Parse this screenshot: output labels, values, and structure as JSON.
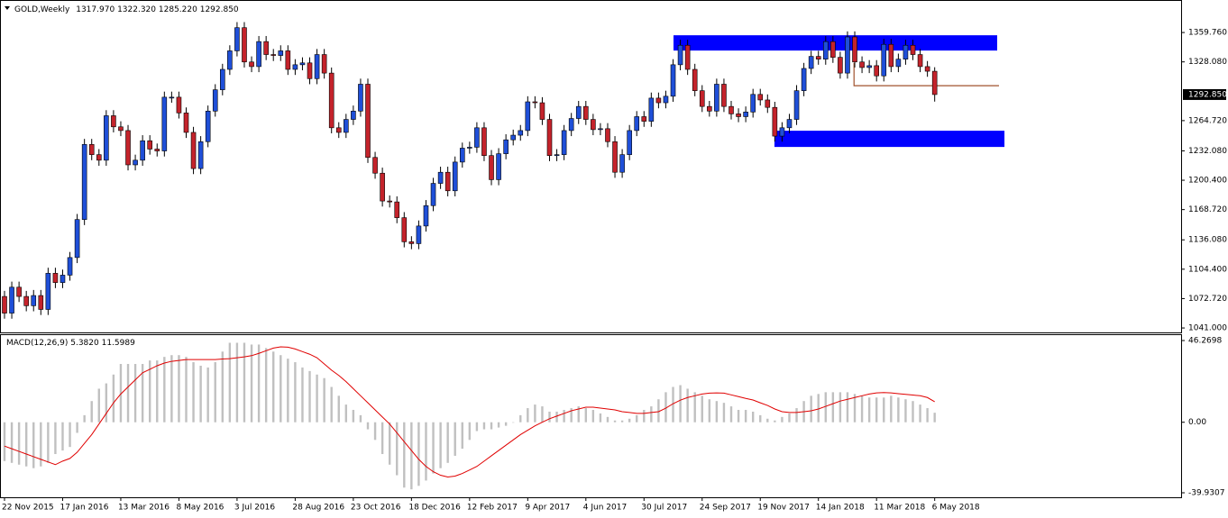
{
  "chart_data": [
    {
      "type": "candlestick",
      "title": "GOLD,Weekly",
      "info_labels": [
        "1317.970",
        "1322.320",
        "1285.220",
        "1292.850"
      ],
      "categories": [
        "22 Nov 2015",
        null,
        null,
        null,
        null,
        null,
        null,
        null,
        "17 Jan 2016",
        null,
        null,
        null,
        null,
        null,
        null,
        null,
        "13 Mar 2016",
        null,
        null,
        null,
        null,
        null,
        null,
        null,
        "8 May 2016",
        null,
        null,
        null,
        null,
        null,
        null,
        null,
        "3 Jul 2016",
        null,
        null,
        null,
        null,
        null,
        null,
        null,
        "28 Aug 2016",
        null,
        null,
        null,
        null,
        null,
        null,
        null,
        "23 Oct 2016",
        null,
        null,
        null,
        null,
        null,
        null,
        null,
        "18 Dec 2016",
        null,
        null,
        null,
        null,
        null,
        null,
        null,
        "12 Feb 2017",
        null,
        null,
        null,
        null,
        null,
        null,
        null,
        "9 Apr 2017",
        null,
        null,
        null,
        null,
        null,
        null,
        null,
        "4 Jun 2017",
        null,
        null,
        null,
        null,
        null,
        null,
        null,
        "30 Jul 2017",
        null,
        null,
        null,
        null,
        null,
        null,
        null,
        "24 Sep 2017",
        null,
        null,
        null,
        null,
        null,
        null,
        null,
        "19 Nov 2017",
        null,
        null,
        null,
        null,
        null,
        null,
        null,
        "14 Jan 2018",
        null,
        null,
        null,
        null,
        null,
        null,
        null,
        "11 Mar 2018",
        null,
        null,
        null,
        null,
        null,
        null,
        null,
        "6 May 2018"
      ],
      "open": [
        1075,
        1057,
        1085,
        1075,
        1065,
        1076,
        1061,
        1100,
        1090,
        1098,
        1117,
        1158,
        1239,
        1228,
        1222,
        1270,
        1258,
        1254,
        1217,
        1222,
        1243,
        1234,
        1232,
        1290,
        1290,
        1273,
        1252,
        1213,
        1242,
        1275,
        1298,
        1320,
        1340,
        1365,
        1328,
        1323,
        1350,
        1336,
        1335,
        1340,
        1320,
        1325,
        1327,
        1310,
        1336,
        1316,
        1257,
        1252,
        1266,
        1275,
        1304,
        1225,
        1208,
        1178,
        1177,
        1160,
        1134,
        1132,
        1151,
        1173,
        1197,
        1209,
        1189,
        1220,
        1235,
        1236,
        1257,
        1227,
        1201,
        1229,
        1244,
        1249,
        1254,
        1285,
        1284,
        1266,
        1227,
        1228,
        1254,
        1267,
        1280,
        1266,
        1255,
        1256,
        1242,
        1209,
        1228,
        1254,
        1269,
        1264,
        1289,
        1284,
        1291,
        1325,
        1346,
        1320,
        1297,
        1280,
        1275,
        1304,
        1280,
        1272,
        1269,
        1274,
        1293,
        1287,
        1279,
        1248,
        1257,
        1266,
        1297,
        1321,
        1334,
        1331,
        1350,
        1333,
        1316,
        1355,
        1328,
        1322,
        1324,
        1313,
        1347,
        1323,
        1331,
        1346,
        1336,
        1323,
        1317.97
      ],
      "high": [
        1081,
        1091,
        1091,
        1081,
        1082,
        1082,
        1106,
        1106,
        1104,
        1123,
        1164,
        1245,
        1245,
        1234,
        1276,
        1276,
        1264,
        1260,
        1228,
        1249,
        1249,
        1240,
        1296,
        1296,
        1296,
        1279,
        1258,
        1248,
        1281,
        1304,
        1326,
        1346,
        1371,
        1371,
        1334,
        1356,
        1356,
        1342,
        1346,
        1346,
        1331,
        1333,
        1333,
        1342,
        1342,
        1322,
        1263,
        1272,
        1281,
        1310,
        1310,
        1231,
        1214,
        1184,
        1183,
        1166,
        1140,
        1157,
        1179,
        1203,
        1215,
        1215,
        1226,
        1241,
        1242,
        1263,
        1263,
        1233,
        1235,
        1250,
        1255,
        1260,
        1291,
        1291,
        1290,
        1272,
        1234,
        1260,
        1273,
        1286,
        1286,
        1272,
        1262,
        1262,
        1248,
        1234,
        1260,
        1275,
        1275,
        1295,
        1295,
        1297,
        1331,
        1352,
        1352,
        1326,
        1303,
        1286,
        1310,
        1310,
        1286,
        1278,
        1280,
        1299,
        1299,
        1293,
        1285,
        1263,
        1272,
        1303,
        1327,
        1340,
        1340,
        1356,
        1356,
        1339,
        1361,
        1361,
        1334,
        1330,
        1330,
        1353,
        1353,
        1337,
        1352,
        1352,
        1342,
        1329,
        1322.32
      ],
      "low": [
        1051,
        1051,
        1069,
        1059,
        1059,
        1055,
        1055,
        1084,
        1084,
        1092,
        1111,
        1152,
        1222,
        1216,
        1216,
        1252,
        1248,
        1211,
        1211,
        1216,
        1228,
        1226,
        1226,
        1284,
        1267,
        1246,
        1207,
        1207,
        1236,
        1269,
        1292,
        1314,
        1334,
        1322,
        1317,
        1317,
        1330,
        1329,
        1329,
        1314,
        1314,
        1319,
        1304,
        1304,
        1310,
        1251,
        1246,
        1246,
        1260,
        1269,
        1219,
        1202,
        1172,
        1171,
        1154,
        1128,
        1126,
        1126,
        1145,
        1167,
        1191,
        1183,
        1183,
        1214,
        1229,
        1230,
        1221,
        1195,
        1195,
        1223,
        1238,
        1243,
        1248,
        1278,
        1260,
        1221,
        1221,
        1222,
        1248,
        1261,
        1260,
        1249,
        1249,
        1236,
        1203,
        1203,
        1222,
        1248,
        1258,
        1258,
        1278,
        1278,
        1285,
        1319,
        1314,
        1291,
        1274,
        1269,
        1269,
        1274,
        1266,
        1263,
        1263,
        1268,
        1281,
        1273,
        1242,
        1242,
        1251,
        1260,
        1291,
        1315,
        1325,
        1325,
        1327,
        1310,
        1310,
        1322,
        1316,
        1316,
        1307,
        1307,
        1317,
        1317,
        1325,
        1330,
        1317,
        1312,
        1285.22
      ],
      "close": [
        1057,
        1085,
        1075,
        1065,
        1076,
        1061,
        1100,
        1090,
        1098,
        1117,
        1158,
        1239,
        1228,
        1222,
        1270,
        1258,
        1254,
        1217,
        1222,
        1243,
        1234,
        1232,
        1290,
        1290,
        1273,
        1252,
        1213,
        1242,
        1275,
        1298,
        1320,
        1340,
        1365,
        1328,
        1323,
        1350,
        1336,
        1335,
        1340,
        1320,
        1325,
        1327,
        1310,
        1336,
        1316,
        1257,
        1252,
        1266,
        1275,
        1304,
        1225,
        1208,
        1178,
        1177,
        1160,
        1134,
        1132,
        1151,
        1173,
        1197,
        1209,
        1189,
        1220,
        1235,
        1236,
        1257,
        1227,
        1201,
        1229,
        1244,
        1249,
        1254,
        1285,
        1284,
        1266,
        1227,
        1228,
        1254,
        1267,
        1280,
        1266,
        1255,
        1256,
        1242,
        1209,
        1228,
        1254,
        1269,
        1264,
        1289,
        1284,
        1291,
        1325,
        1346,
        1320,
        1297,
        1280,
        1275,
        1304,
        1280,
        1272,
        1269,
        1274,
        1293,
        1287,
        1279,
        1248,
        1257,
        1266,
        1297,
        1321,
        1334,
        1331,
        1350,
        1333,
        1316,
        1355,
        1328,
        1322,
        1324,
        1313,
        1347,
        1323,
        1331,
        1346,
        1336,
        1323,
        1318,
        1292.85
      ],
      "up_color": "#1f4fd8",
      "down_color": "#c4232b",
      "ylim": [
        1036.2,
        1392.9
      ],
      "yticks": [
        {
          "value": 1359.76,
          "label": "1359.760"
        },
        {
          "value": 1328.08,
          "label": "1328.080"
        },
        {
          "value": 1264.72,
          "label": "1264.720"
        },
        {
          "value": 1232.08,
          "label": "1232.080"
        },
        {
          "value": 1200.4,
          "label": "1200.400"
        },
        {
          "value": 1168.72,
          "label": "1168.720"
        },
        {
          "value": 1136.08,
          "label": "1136.080"
        },
        {
          "value": 1104.4,
          "label": "1104.400"
        },
        {
          "value": 1072.72,
          "label": "1072.720"
        },
        {
          "value": 1041,
          "label": "1041.000"
        }
      ],
      "last_price": {
        "value": 1292.85,
        "label": "1292.850"
      },
      "zones": [
        {
          "x": [
            92.06,
            136.6
          ],
          "y": [
            1340.3,
            1356.8
          ],
          "color": "#0000ff"
        },
        {
          "x": [
            105.95,
            137.6
          ],
          "y": [
            1236.3,
            1253.8
          ],
          "color": "#0000ff"
        }
      ],
      "lines": [
        {
          "x": [
            116.9,
            116.9,
            136.85
          ],
          "y": [
            1327,
            1302.4,
            1302.4
          ],
          "color": "#a0522d"
        }
      ]
    },
    {
      "type": "macd",
      "title": "MACD(12,26,9)",
      "value_labels": [
        "5.3820",
        "11.5989"
      ],
      "histogram": {
        "color": "#c0c0c0",
        "values": [
          -22,
          -23,
          -24,
          -25,
          -26,
          -25,
          -23,
          -18,
          -16,
          -14,
          -6,
          4,
          12,
          19,
          22,
          27,
          33,
          33,
          33,
          33,
          35,
          35,
          37,
          38,
          38,
          37,
          34,
          32,
          31,
          34,
          40,
          45,
          45,
          45,
          44,
          44,
          42,
          40,
          38,
          36,
          34,
          31,
          29,
          27,
          25,
          20,
          15,
          10,
          7,
          4,
          -4,
          -10,
          -18,
          -24,
          -30,
          -37,
          -38,
          -36,
          -33,
          -29,
          -26,
          -23,
          -19,
          -15,
          -10,
          -5,
          -4,
          -4,
          -3,
          -2,
          0,
          4,
          8,
          10,
          9,
          6,
          6,
          7,
          8,
          9,
          8,
          7,
          5,
          3,
          1,
          1,
          2,
          4,
          7,
          9,
          13,
          17,
          20,
          21,
          19,
          17,
          15,
          13,
          12,
          11,
          9,
          7,
          7,
          6,
          4,
          2,
          1,
          3,
          5,
          8,
          12,
          15,
          16,
          17,
          17,
          17,
          17,
          16,
          15,
          14,
          14,
          14,
          15,
          14,
          13,
          12,
          10,
          8,
          5.382
        ]
      },
      "signal": {
        "color": "#e00000",
        "values": [
          -13.5,
          -15,
          -16.5,
          -18,
          -19.5,
          -21,
          -22.5,
          -24,
          -22,
          -20.5,
          -17,
          -12,
          -7,
          -1,
          5,
          11,
          16,
          20,
          24,
          28,
          30,
          32,
          33.5,
          34.5,
          35,
          35.5,
          35.5,
          35.5,
          35.5,
          35.5,
          35.8,
          36,
          36.5,
          37,
          37.7,
          39,
          40.5,
          42,
          42.7,
          42.5,
          41.5,
          40,
          38.5,
          36.5,
          33,
          29.5,
          26.5,
          23,
          19,
          15,
          11,
          7,
          3,
          -1,
          -6,
          -11,
          -16,
          -21,
          -25,
          -28,
          -30,
          -31,
          -30.5,
          -29,
          -27,
          -25,
          -22,
          -19,
          -16,
          -13,
          -10,
          -7,
          -4.5,
          -2,
          0,
          2,
          3.5,
          5,
          6.5,
          7.5,
          8.5,
          8.5,
          8,
          7.5,
          7,
          6,
          5.5,
          5,
          5,
          5.5,
          6,
          8,
          10.5,
          12.5,
          14,
          15,
          16,
          16.5,
          16.6,
          16.5,
          15.5,
          14.5,
          13.5,
          12.6,
          11,
          9.5,
          7.5,
          6,
          5.5,
          5.5,
          6,
          6.5,
          7.5,
          9,
          10.5,
          12,
          13,
          14,
          15,
          16,
          16.6,
          16.8,
          16.6,
          16.2,
          15.8,
          15.4,
          15,
          14,
          11.5989
        ]
      },
      "ylim": [
        -41.97,
        48.82
      ],
      "yticks": [
        {
          "value": 46.2698,
          "label": "46.2698"
        },
        {
          "value": 0,
          "label": "0.00"
        },
        {
          "value": -39.9307,
          "label": "-39.9307"
        }
      ]
    }
  ]
}
